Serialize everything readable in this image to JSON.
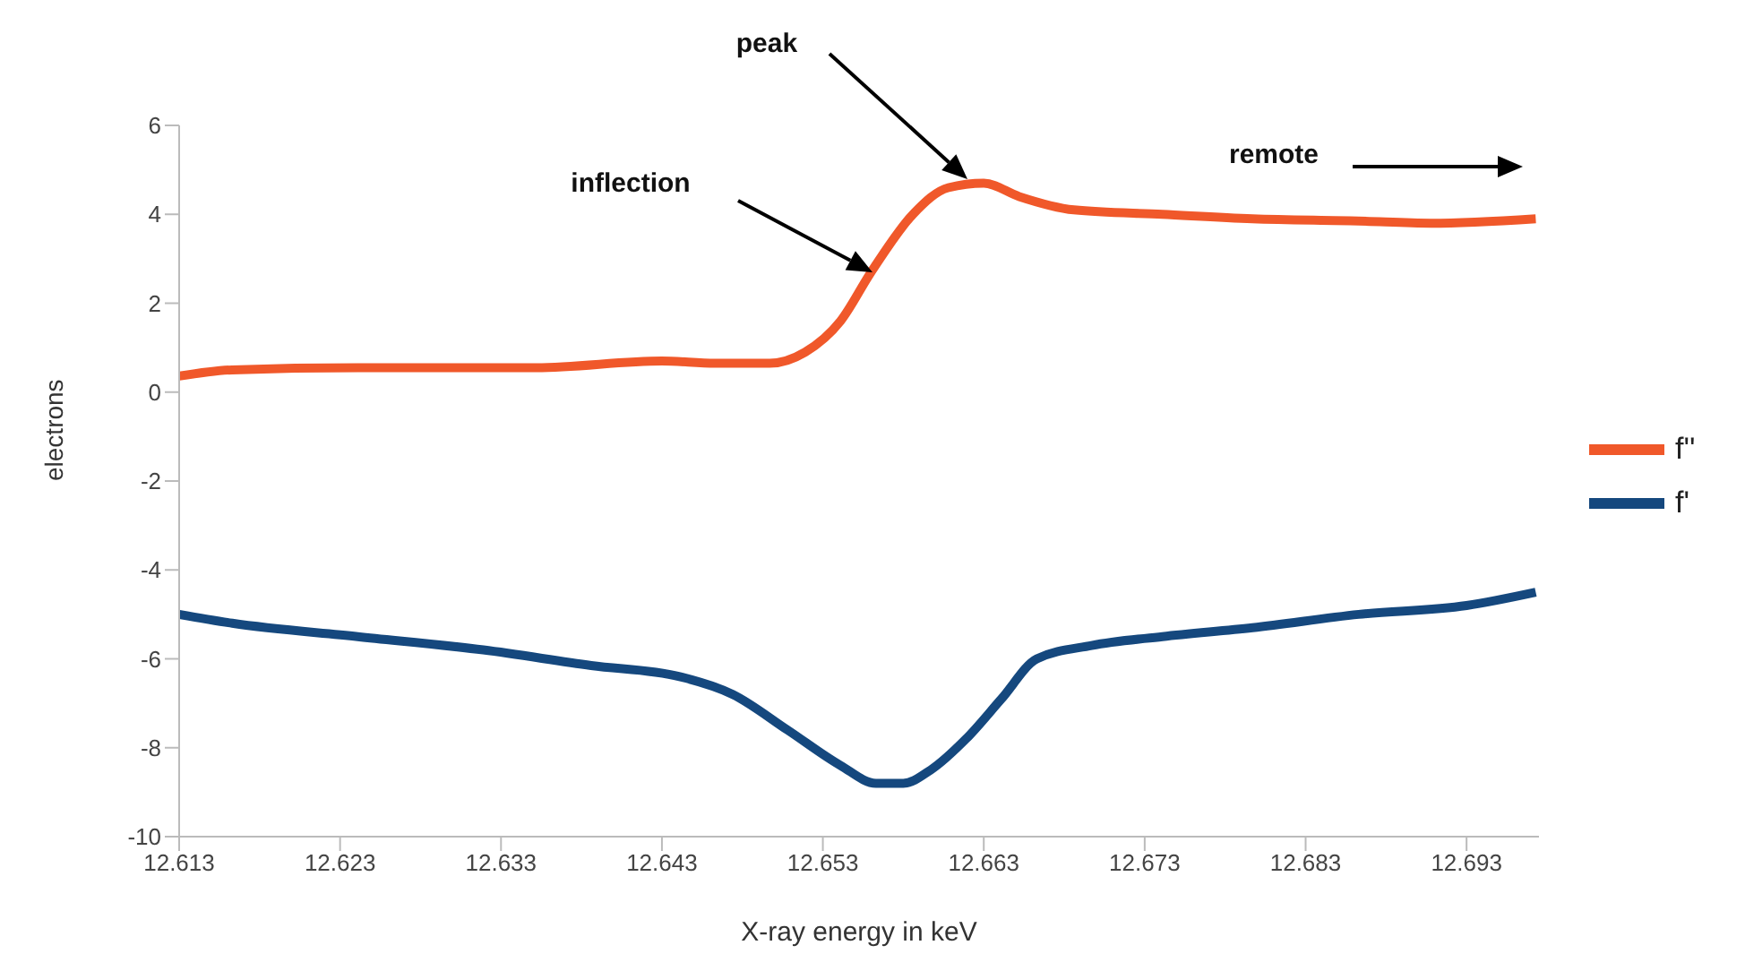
{
  "chart_data": {
    "type": "line",
    "xlabel": "X-ray energy in keV",
    "ylabel": "electrons",
    "xlim": [
      12.613,
      12.6975
    ],
    "xticks": [
      12.613,
      12.623,
      12.633,
      12.643,
      12.653,
      12.663,
      12.673,
      12.683,
      12.693
    ],
    "ylim": [
      -10,
      6
    ],
    "yticks": [
      -10,
      -8,
      -6,
      -4,
      -2,
      0,
      2,
      4,
      6
    ],
    "grid": false,
    "legend": "right",
    "marker": "none",
    "line_style": "solid",
    "annotations": [
      "inflection",
      "peak",
      "remote"
    ],
    "series": [
      {
        "name": "f''",
        "color": "#f0582a",
        "x": [
          12.613,
          12.6163,
          12.6241,
          12.6352,
          12.643,
          12.6463,
          12.6497,
          12.6519,
          12.6541,
          12.656,
          12.6586,
          12.6608,
          12.663,
          12.6652,
          12.6686,
          12.6741,
          12.6797,
          12.6863,
          12.6908,
          12.6973
        ],
        "values": [
          0.36,
          0.5,
          0.55,
          0.55,
          0.7,
          0.65,
          0.65,
          0.9,
          1.6,
          2.7,
          4.0,
          4.6,
          4.7,
          4.4,
          4.1,
          4.0,
          3.9,
          3.85,
          3.8,
          3.9
        ]
      },
      {
        "name": "f'",
        "color": "#15487e",
        "x": [
          12.613,
          12.6163,
          12.6241,
          12.6319,
          12.6386,
          12.6441,
          12.6474,
          12.6508,
          12.6541,
          12.6563,
          12.658,
          12.6597,
          12.6619,
          12.6641,
          12.6663,
          12.6697,
          12.6741,
          12.6797,
          12.6863,
          12.693,
          12.6973
        ],
        "values": [
          -5.0,
          -5.2,
          -5.5,
          -5.8,
          -6.15,
          -6.4,
          -6.8,
          -7.6,
          -8.4,
          -8.8,
          -8.8,
          -8.5,
          -7.8,
          -6.9,
          -6.0,
          -5.7,
          -5.5,
          -5.3,
          -5.0,
          -4.8,
          -4.5
        ]
      }
    ]
  }
}
